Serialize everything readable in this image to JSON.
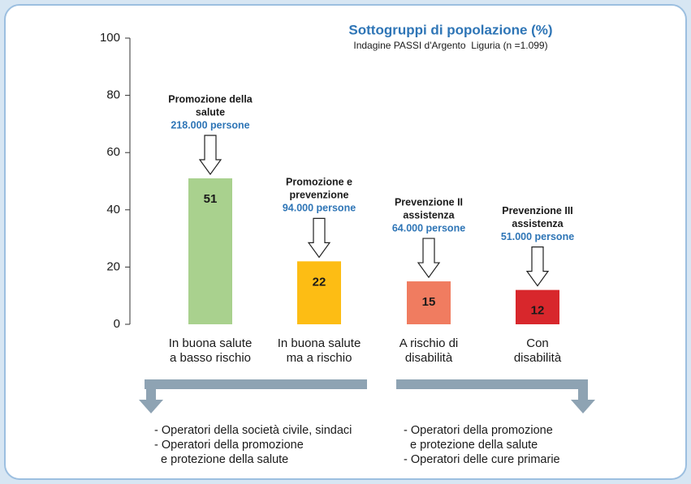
{
  "chart_data": {
    "type": "bar",
    "title": "Sottogruppi di popolazione (%)",
    "subtitle": "Indagine PASSI d'Argento  Liguria (n =1.099)",
    "categories": [
      [
        "In buona salute",
        "a basso rischio"
      ],
      [
        "In buona salute",
        "ma a rischio"
      ],
      [
        "A rischio di",
        "disabilità"
      ],
      [
        "Con",
        "disabilità"
      ]
    ],
    "values": [
      51,
      22,
      15,
      12
    ],
    "colors": [
      "#a9d18e",
      "#fdbd14",
      "#f07c60",
      "#d8272c"
    ],
    "ylim": [
      0,
      100
    ],
    "yticks": [
      0,
      20,
      40,
      60,
      80,
      100
    ],
    "annotations": [
      {
        "lines": [
          "Promozione della",
          "salute"
        ],
        "people": "218.000 persone"
      },
      {
        "lines": [
          "Promozione e",
          "prevenzione"
        ],
        "people": "94.000 persone"
      },
      {
        "lines": [
          "Prevenzione II",
          "assistenza"
        ],
        "people": "64.000 persone"
      },
      {
        "lines": [
          "Prevenzione III",
          "assistenza"
        ],
        "people": "51.000 persone"
      }
    ],
    "audiences": [
      [
        "- Operatori della società civile, sindaci",
        "- Operatori della promozione",
        "  e protezione della salute"
      ],
      [
        "- Operatori della promozione",
        "  e protezione della salute",
        "- Operatori delle cure primarie"
      ]
    ]
  }
}
